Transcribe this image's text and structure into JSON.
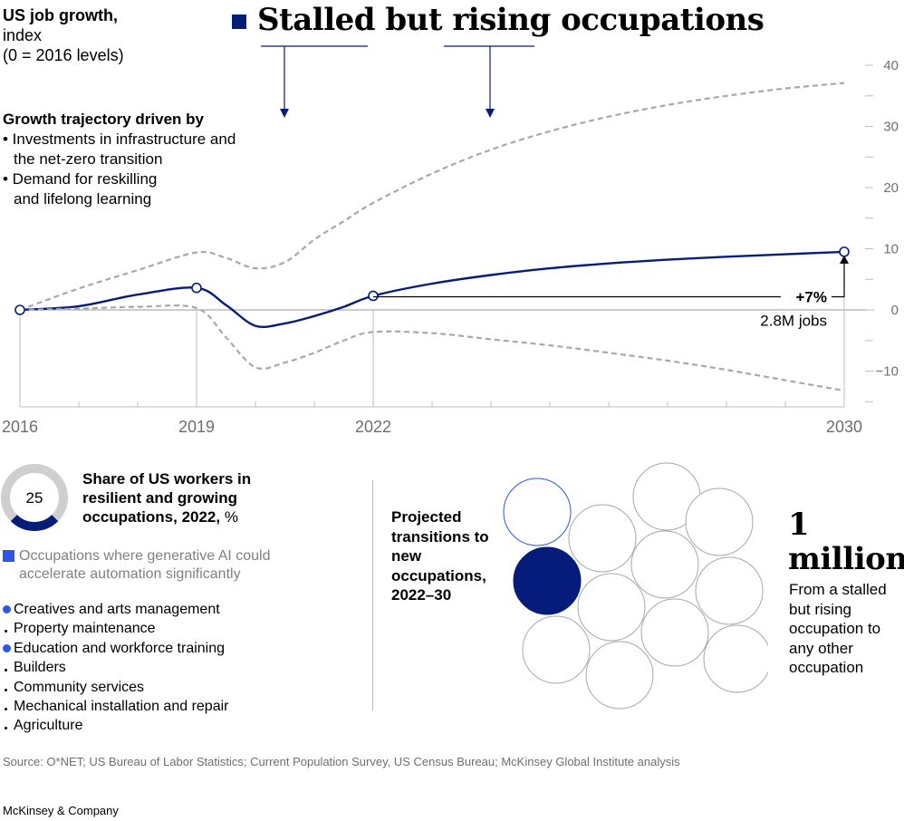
{
  "header": {
    "ylabel_title": "US job growth,",
    "ylabel_lines": [
      "index",
      "(0 = 2016 levels)"
    ],
    "title": "Stalled but rising occupations",
    "title_color": "#051c7a"
  },
  "drivers": {
    "heading": "Growth trajectory driven by",
    "items": [
      "• Investments in infrastructure and the net-zero transition",
      "• Demand for reskilling and lifelong learning"
    ]
  },
  "chart_data": {
    "type": "line",
    "x_ticks": [
      "2016",
      "2019",
      "2022",
      "2030"
    ],
    "y_ticks": [
      40,
      30,
      20,
      10,
      0,
      -10
    ],
    "ylim": [
      -15,
      40
    ],
    "xlim": [
      2016,
      2030
    ],
    "grid": false,
    "series": [
      {
        "role": "main",
        "color": "#051c7a",
        "x": [
          2016,
          2017,
          2018,
          2019,
          2019.5,
          2020,
          2020.5,
          2021,
          2021.5,
          2022,
          2023,
          2024,
          2025,
          2026,
          2027,
          2028,
          2029,
          2030
        ],
        "y": [
          0,
          0.6,
          2.5,
          3.6,
          0.8,
          -2.6,
          -2.2,
          -1.0,
          0.5,
          2.3,
          4.3,
          5.7,
          6.8,
          7.6,
          8.2,
          8.7,
          9.1,
          9.5
        ]
      },
      {
        "role": "upper-bound",
        "color": "#a8a8a8",
        "x": [
          2016,
          2017,
          2018,
          2019,
          2019.5,
          2020,
          2020.5,
          2021,
          2021.5,
          2022,
          2023,
          2024,
          2025,
          2026,
          2027,
          2028,
          2029,
          2030
        ],
        "y": [
          0,
          3.5,
          6.5,
          9.4,
          8.5,
          6.8,
          7.8,
          11.5,
          14.5,
          17.5,
          22.3,
          26.2,
          29.2,
          31.6,
          33.5,
          35.0,
          36.2,
          37.1
        ]
      },
      {
        "role": "lower-bound",
        "color": "#a8a8a8",
        "x": [
          2016,
          2017,
          2018,
          2019,
          2019.5,
          2020,
          2020.5,
          2021,
          2021.5,
          2022,
          2023,
          2024,
          2025,
          2026,
          2027,
          2028,
          2029,
          2030
        ],
        "y": [
          0,
          0.2,
          0.5,
          0.3,
          -4.5,
          -9.4,
          -8.6,
          -7.0,
          -5.0,
          -3.6,
          -3.8,
          -4.8,
          -5.8,
          -7.0,
          -8.3,
          -9.8,
          -11.5,
          -13.2
        ]
      }
    ],
    "markers": [
      {
        "x": 2016,
        "y": 0
      },
      {
        "x": 2019,
        "y": 3.6
      },
      {
        "x": 2022,
        "y": 2.3
      },
      {
        "x": 2030,
        "y": 9.5
      }
    ],
    "annotation": {
      "value": "+7%",
      "sub": "2.8M jobs",
      "from": {
        "x": 2022,
        "y": 2.3
      },
      "to": {
        "x": 2030,
        "y": 9.5
      }
    }
  },
  "share": {
    "value": "25",
    "percent": 25,
    "ring_color": "#051c7a",
    "ring_track_color": "#cfcfcf",
    "title": "Share of US workers in resilient and growing occupations, 2022,",
    "unit": "%"
  },
  "genai_legend": {
    "text": "Occupations where generative AI could accelerate automation significantly",
    "color": "#2d55e6"
  },
  "occupations": [
    {
      "label": "Creatives and arts management",
      "genai": true
    },
    {
      "label": "Property maintenance",
      "genai": false
    },
    {
      "label": "Education and workforce training",
      "genai": true
    },
    {
      "label": "Builders",
      "genai": false
    },
    {
      "label": "Community services",
      "genai": false
    },
    {
      "label": "Mechanical installation and repair",
      "genai": false
    },
    {
      "label": "Agriculture",
      "genai": false
    }
  ],
  "transitions": {
    "label": "Projected transitions to new occupations, 2022–30",
    "value": "1 million",
    "description": "From a stalled but rising occupation to any other occupation",
    "circle_count": 12,
    "filled_circle_count": 1,
    "filled_color": "#051c7a",
    "highlight_outline_color": "#2d55e6"
  },
  "footer": {
    "source": "Source: O*NET; US Bureau of Labor Statistics; Current Population Survey, US Census Bureau; McKinsey Global Institute analysis",
    "brand": "McKinsey & Company"
  }
}
